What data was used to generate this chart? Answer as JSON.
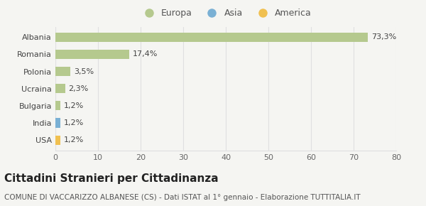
{
  "categories": [
    "Albania",
    "Romania",
    "Polonia",
    "Ucraina",
    "Bulgaria",
    "India",
    "USA"
  ],
  "values": [
    73.3,
    17.4,
    3.5,
    2.3,
    1.2,
    1.2,
    1.2
  ],
  "labels": [
    "73,3%",
    "17,4%",
    "3,5%",
    "2,3%",
    "1,2%",
    "1,2%",
    "1,2%"
  ],
  "colors": [
    "#b5c98e",
    "#b5c98e",
    "#b5c98e",
    "#b5c98e",
    "#b5c98e",
    "#7ab0d4",
    "#f0c050"
  ],
  "legend_items": [
    {
      "label": "Europa",
      "color": "#b5c98e"
    },
    {
      "label": "Asia",
      "color": "#7ab0d4"
    },
    {
      "label": "America",
      "color": "#f0c050"
    }
  ],
  "xlim": [
    0,
    80
  ],
  "xticks": [
    0,
    10,
    20,
    30,
    40,
    50,
    60,
    70,
    80
  ],
  "title": "Cittadini Stranieri per Cittadinanza",
  "subtitle": "COMUNE DI VACCARIZZO ALBANESE (CS) - Dati ISTAT al 1° gennaio - Elaborazione TUTTITALIA.IT",
  "background_color": "#f5f5f2",
  "grid_color": "#e0e0e0",
  "title_fontsize": 11,
  "subtitle_fontsize": 7.5,
  "label_fontsize": 8,
  "tick_fontsize": 8
}
